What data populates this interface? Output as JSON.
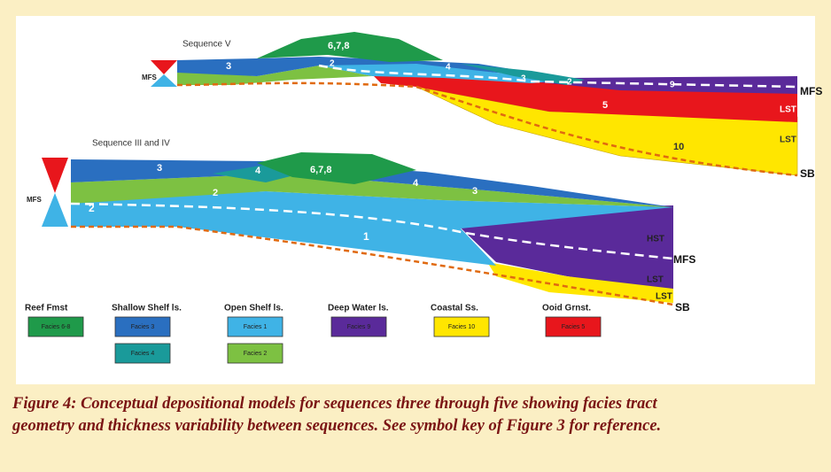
{
  "figure": {
    "upper_section": {
      "title": "Sequence V",
      "labels": [
        "MFS",
        "3",
        "6,7,8",
        "2",
        "4",
        "3",
        "2",
        "9",
        "5",
        "10",
        "LST",
        "LST",
        "MFS",
        "SB"
      ]
    },
    "lower_section": {
      "title": "Sequence III and IV",
      "labels": [
        "MFS",
        "3",
        "4",
        "6,7,8",
        "2",
        "2",
        "4",
        "3",
        "1",
        "HST",
        "MFS",
        "LST",
        "LST",
        "SB"
      ]
    },
    "legend": [
      {
        "title": "Reef Fmst",
        "swatches": [
          "Facies 6-8"
        ]
      },
      {
        "title": "Shallow Shelf ls.",
        "swatches": [
          "Facies 3",
          "Facies 4"
        ]
      },
      {
        "title": "Open Shelf ls.",
        "swatches": [
          "Facies 1",
          "Facies 2"
        ]
      },
      {
        "title": "Deep Water ls.",
        "swatches": [
          "Facies 9"
        ]
      },
      {
        "title": "Coastal Ss.",
        "swatches": [
          "Facies 10"
        ]
      },
      {
        "title": "Ooid Grnst.",
        "swatches": [
          "Facies 5"
        ]
      }
    ]
  },
  "caption": {
    "lines": [
      "Figure 4: Conceptual depositional models for sequences three through five showing facies tract",
      "geometry and thickness variability between sequences. See symbol key of Figure 3 for reference."
    ]
  }
}
